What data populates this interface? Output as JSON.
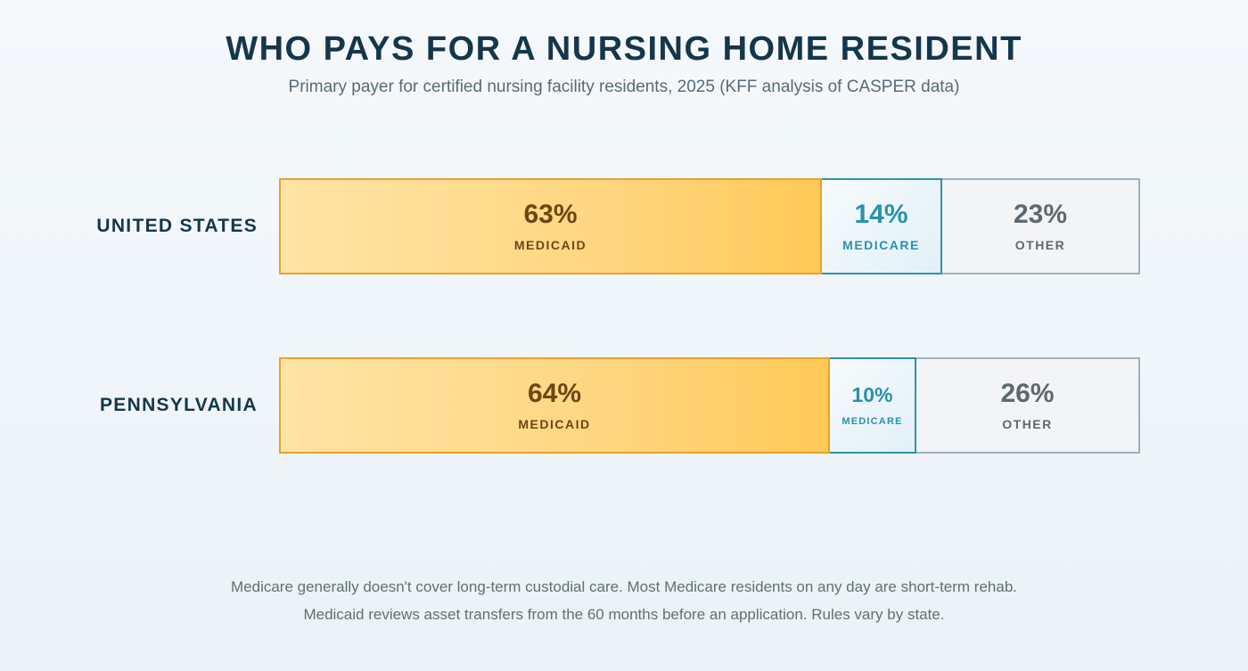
{
  "chart_data": {
    "type": "bar",
    "orientation": "horizontal",
    "stacked": true,
    "title": "WHO PAYS FOR A NURSING HOME RESIDENT",
    "subtitle": "Primary payer for certified nursing facility residents, 2025 (KFF analysis of CASPER data)",
    "categories": [
      "UNITED STATES",
      "PENNSYLVANIA"
    ],
    "series": [
      {
        "name": "MEDICAID",
        "values": [
          63,
          64
        ],
        "color": "#ffd680"
      },
      {
        "name": "MEDICARE",
        "values": [
          14,
          10
        ],
        "color": "#2792ad"
      },
      {
        "name": "OTHER",
        "values": [
          23,
          26
        ],
        "color": "#5d6970"
      }
    ],
    "value_labels": [
      [
        "63%",
        "14%",
        "23%"
      ],
      [
        "64%",
        "10%",
        "26%"
      ]
    ],
    "xlim": [
      0,
      100
    ],
    "grid": false,
    "legend": "none"
  },
  "footnotes": [
    "Medicare generally doesn't cover long-term custodial care. Most Medicare residents on any day are short-term rehab.",
    "Medicaid reviews asset transfers from the 60 months before an application. Rules vary by state."
  ]
}
